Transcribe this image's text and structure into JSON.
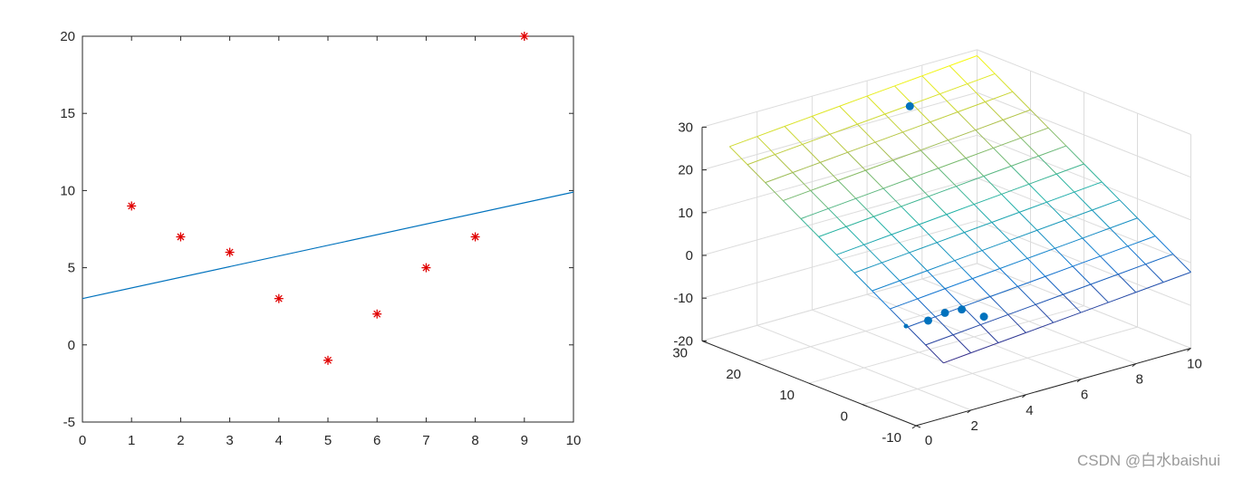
{
  "watermark": "CSDN @白水baishui",
  "chart_data": [
    {
      "type": "scatter",
      "title": "",
      "xlabel": "",
      "ylabel": "",
      "xlim": [
        0,
        10
      ],
      "ylim": [
        -5,
        20
      ],
      "xticks": [
        0,
        1,
        2,
        3,
        4,
        5,
        6,
        7,
        8,
        9,
        10
      ],
      "yticks": [
        -5,
        0,
        5,
        10,
        15,
        20
      ],
      "grid": false,
      "series": [
        {
          "kind": "scatter",
          "marker": "asterisk",
          "color": "#e00000",
          "x": [
            1,
            2,
            3,
            4,
            5,
            6,
            7,
            8,
            9
          ],
          "y": [
            9,
            7,
            6,
            3,
            -1,
            2,
            5,
            7,
            20
          ]
        },
        {
          "kind": "line",
          "color": "#0072bd",
          "x": [
            0,
            10
          ],
          "y": [
            3.0,
            9.9
          ]
        }
      ]
    },
    {
      "type": "scatter3d-surface",
      "title": "",
      "xlim": [
        0,
        10
      ],
      "ylim": [
        -10,
        30
      ],
      "zlim": [
        -20,
        30
      ],
      "xticks": [
        2,
        4,
        6,
        8,
        10
      ],
      "xticklabels": [
        "2",
        "4",
        "6",
        "8",
        "10"
      ],
      "xtick_zero_label": "0",
      "yticks": [
        -10,
        0,
        10,
        20,
        30
      ],
      "zticks": [
        -20,
        -10,
        0,
        10,
        20,
        30
      ],
      "grid": true,
      "surface": {
        "colormap": "parula",
        "x_range": [
          1,
          10
        ],
        "y_range": [
          -10,
          30
        ],
        "x_lines": 10,
        "y_lines": 13,
        "plane": {
          "c": 0.0,
          "a": 0.55,
          "b": 0.77
        }
      },
      "points": {
        "color": "#0072bd",
        "x": [
          1,
          2,
          3,
          4,
          5,
          6
        ],
        "y": [
          -3,
          -2,
          0,
          2,
          3,
          22
        ],
        "z": [
          -2,
          -3,
          -4,
          -6,
          -10,
          28
        ]
      }
    }
  ]
}
